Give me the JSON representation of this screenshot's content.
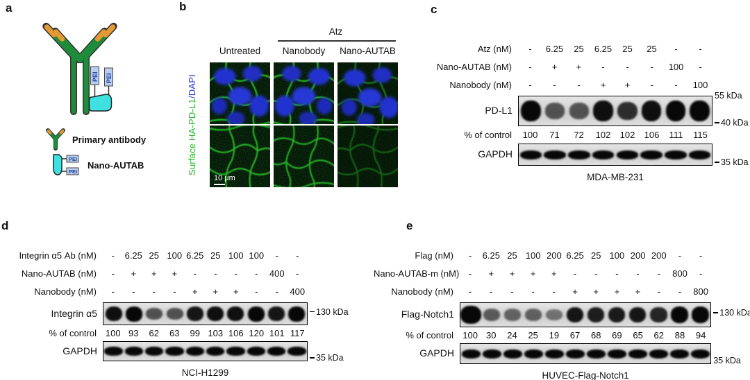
{
  "panels": {
    "a": {
      "label": "a",
      "pei_tag": "PEI",
      "legend": [
        {
          "icon": "antibody-icon",
          "label": "Primary antibody"
        },
        {
          "icon": "nano-autab-icon",
          "label": "Nano-AUTAB"
        }
      ],
      "colors": {
        "antibody_green": "#1f8c3c",
        "tip_orange": "#e39a33",
        "nanobody_cyan": "#3fe0e0",
        "pei_fill": "#b9cdf0"
      }
    },
    "b": {
      "label": "b",
      "group_header": "Atz",
      "columns": [
        "Untreated",
        "Nanobody",
        "Nano-AUTAB"
      ],
      "row_label": {
        "green": "Surface HA-PD-L1",
        "blue": "/DAPI"
      },
      "scale_bar": "10 μm",
      "colors": {
        "stain_green": "#2fd32f",
        "stain_blue": "#2433cf"
      }
    },
    "c": {
      "label": "c",
      "dose_rows": [
        {
          "label": "Atz (nM)",
          "values": [
            "-",
            "6.25",
            "25",
            "6.25",
            "25",
            "25",
            "-",
            "-"
          ]
        },
        {
          "label": "Nano-AUTAB (nM)",
          "values": [
            "-",
            "+",
            "+",
            "-",
            "-",
            "-",
            "100",
            "-"
          ]
        },
        {
          "label": "Nanobody (nM)",
          "values": [
            "-",
            "-",
            "-",
            "+",
            "+",
            "-",
            "-",
            "100"
          ]
        }
      ],
      "blots": [
        {
          "label": "PD-L1",
          "markers": [
            {
              "pos": "top",
              "text": "55 kDa",
              "dash": false
            },
            {
              "pos": "bottom",
              "text": "40 kDa",
              "dash": true
            }
          ],
          "bands": [
            1,
            0.5,
            0.5,
            0.95,
            0.75,
            0.95,
            1,
            1
          ]
        },
        {
          "label": "GAPDH",
          "markers": [
            {
              "pos": "bottom",
              "text": "35 kDa",
              "dash": true
            }
          ],
          "bands": [
            1,
            1,
            1,
            1,
            1,
            1,
            1,
            1
          ]
        }
      ],
      "percent_row": {
        "label": "% of control",
        "values": [
          "100",
          "71",
          "72",
          "102",
          "102",
          "106",
          "111",
          "115"
        ]
      },
      "cell_line": "MDA-MB-231"
    },
    "d": {
      "label": "d",
      "dose_rows": [
        {
          "label": "Integrin α5 Ab (nM)",
          "values": [
            "-",
            "6.25",
            "25",
            "100",
            "6.25",
            "25",
            "100",
            "100",
            "-",
            "-"
          ]
        },
        {
          "label": "Nano-AUTAB (nM)",
          "values": [
            "-",
            "+",
            "+",
            "+",
            "-",
            "-",
            "-",
            "-",
            "400",
            "-"
          ]
        },
        {
          "label": "Nanobody (nM)",
          "values": [
            "-",
            "-",
            "-",
            "-",
            "+",
            "+",
            "+",
            "-",
            "-",
            "400"
          ]
        }
      ],
      "blots": [
        {
          "label": "Integrin α5",
          "markers": [
            {
              "pos": "mid",
              "text": "130 kDa",
              "dash": true
            }
          ],
          "bands": [
            0.95,
            1,
            0.5,
            0.5,
            0.9,
            0.95,
            0.95,
            1,
            0.9,
            1
          ]
        },
        {
          "label": "GAPDH",
          "markers": [
            {
              "pos": "bottom",
              "text": "35 kDa",
              "dash": true
            }
          ],
          "bands": [
            1,
            1,
            1,
            1,
            1,
            1,
            1,
            1,
            1,
            1
          ]
        }
      ],
      "percent_row": {
        "label": "% of control",
        "values": [
          "100",
          "93",
          "62",
          "63",
          "99",
          "103",
          "106",
          "120",
          "101",
          "117"
        ]
      },
      "cell_line": "NCI-H1299"
    },
    "e": {
      "label": "e",
      "dose_rows": [
        {
          "label": "Flag (nM)",
          "values": [
            "-",
            "6.25",
            "25",
            "100",
            "200",
            "6.25",
            "25",
            "100",
            "200",
            "200",
            "-",
            "-"
          ]
        },
        {
          "label": "Nano-AUTAB-m (nM)",
          "values": [
            "-",
            "+",
            "+",
            "+",
            "+",
            "-",
            "-",
            "-",
            "-",
            "-",
            "800",
            "-"
          ]
        },
        {
          "label": "Nanobody (nM)",
          "values": [
            "-",
            "-",
            "-",
            "-",
            "-",
            "+",
            "+",
            "+",
            "+",
            "-",
            "-",
            "800"
          ]
        }
      ],
      "blots": [
        {
          "label": "Flag-Notch1",
          "markers": [
            {
              "pos": "mid",
              "text": "130 kDa",
              "dash": true
            }
          ],
          "bands": [
            1.2,
            0.45,
            0.4,
            0.42,
            0.3,
            0.9,
            0.85,
            0.88,
            0.9,
            0.8,
            1,
            1
          ]
        },
        {
          "label": "GAPDH",
          "markers": [
            {
              "pos": "bottom",
              "text": "35 kDa",
              "dash": false
            }
          ],
          "bands": [
            1,
            1,
            1,
            1,
            1,
            1,
            1,
            1,
            1,
            1,
            1,
            1
          ]
        }
      ],
      "percent_row": {
        "label": "% of control",
        "values": [
          "100",
          "30",
          "24",
          "25",
          "19",
          "67",
          "68",
          "69",
          "65",
          "62",
          "88",
          "94"
        ]
      },
      "cell_line": "HUVEC-Flag-Notch1"
    }
  }
}
